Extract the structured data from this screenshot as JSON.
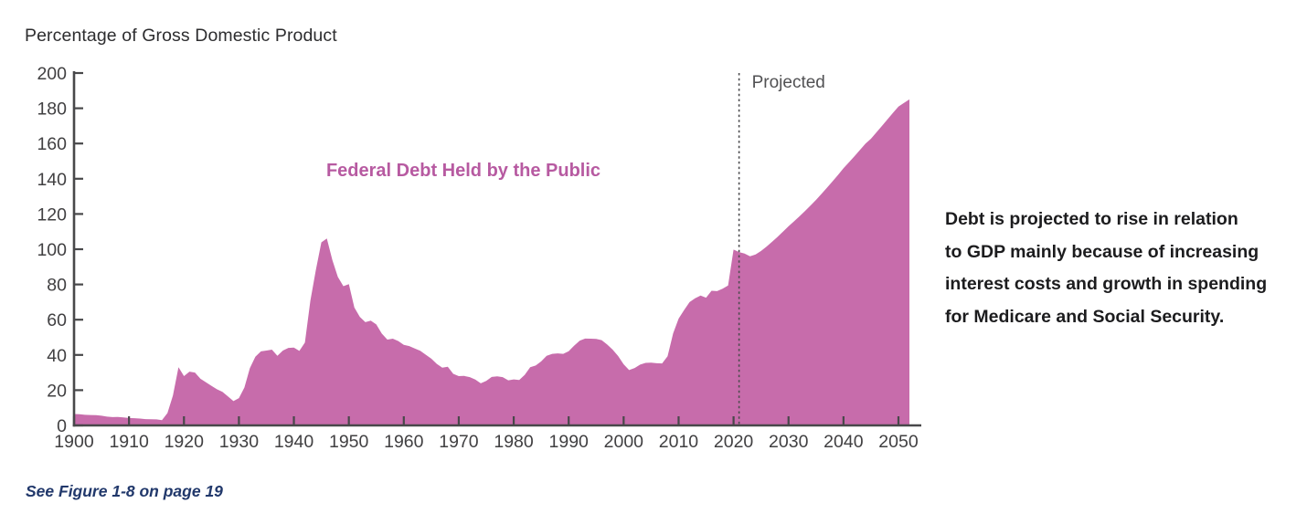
{
  "chart_data": {
    "type": "area",
    "title": "Federal Debt Held by the Public",
    "ylabel": "Percentage of Gross Domestic Product",
    "xlabel": "",
    "xlim": [
      1900,
      2052
    ],
    "ylim": [
      0,
      200
    ],
    "y_tick_step": 20,
    "x_tick_start": 1900,
    "x_tick_end": 2050,
    "x_tick_step": 10,
    "grid": false,
    "legend_position": "none",
    "projection_divider_year": 2021,
    "projected_label": "Projected",
    "colors": {
      "area": "#c76cab",
      "series_label": "#b75aa1",
      "axis": "#48484a",
      "tick_label": "#414042",
      "projected_label": "#515153",
      "divider": "#4c4c4e"
    },
    "x": [
      1900,
      1901,
      1902,
      1903,
      1904,
      1905,
      1906,
      1907,
      1908,
      1909,
      1910,
      1911,
      1912,
      1913,
      1914,
      1915,
      1916,
      1917,
      1918,
      1919,
      1920,
      1921,
      1922,
      1923,
      1924,
      1925,
      1926,
      1927,
      1928,
      1929,
      1930,
      1931,
      1932,
      1933,
      1934,
      1935,
      1936,
      1937,
      1938,
      1939,
      1940,
      1941,
      1942,
      1943,
      1944,
      1945,
      1946,
      1947,
      1948,
      1949,
      1950,
      1951,
      1952,
      1953,
      1954,
      1955,
      1956,
      1957,
      1958,
      1959,
      1960,
      1961,
      1962,
      1963,
      1964,
      1965,
      1966,
      1967,
      1968,
      1969,
      1970,
      1971,
      1972,
      1973,
      1974,
      1975,
      1976,
      1977,
      1978,
      1979,
      1980,
      1981,
      1982,
      1983,
      1984,
      1985,
      1986,
      1987,
      1988,
      1989,
      1990,
      1991,
      1992,
      1993,
      1994,
      1995,
      1996,
      1997,
      1998,
      1999,
      2000,
      2001,
      2002,
      2003,
      2004,
      2005,
      2006,
      2007,
      2008,
      2009,
      2010,
      2011,
      2012,
      2013,
      2014,
      2015,
      2016,
      2017,
      2018,
      2019,
      2020,
      2021,
      2022,
      2023,
      2024,
      2025,
      2026,
      2027,
      2028,
      2029,
      2030,
      2031,
      2032,
      2033,
      2034,
      2035,
      2036,
      2037,
      2038,
      2039,
      2040,
      2041,
      2042,
      2043,
      2044,
      2045,
      2046,
      2047,
      2048,
      2049,
      2050,
      2051,
      2052
    ],
    "values": [
      6.5,
      6.3,
      6.0,
      5.9,
      5.8,
      5.5,
      5.0,
      4.7,
      4.8,
      4.5,
      4.2,
      4.1,
      3.9,
      3.6,
      3.5,
      3.4,
      3.0,
      7.0,
      17.0,
      33.0,
      28.0,
      30.5,
      30.0,
      26.5,
      24.5,
      22.5,
      20.5,
      19.0,
      16.5,
      13.8,
      15.5,
      21.5,
      32.5,
      39.0,
      42.0,
      42.5,
      43.0,
      39.5,
      42.5,
      44.0,
      44.2,
      42.3,
      47.0,
      70.9,
      88.3,
      103.9,
      106.1,
      93.9,
      84.3,
      79.0,
      80.2,
      66.9,
      61.6,
      58.6,
      59.5,
      57.3,
      52.1,
      48.7,
      49.2,
      47.9,
      45.7,
      45.0,
      43.7,
      42.4,
      40.1,
      37.9,
      34.9,
      32.8,
      33.3,
      29.3,
      28.0,
      28.1,
      27.4,
      26.0,
      23.9,
      25.3,
      27.5,
      27.8,
      27.4,
      25.6,
      26.1,
      25.8,
      28.7,
      33.0,
      34.0,
      36.3,
      39.5,
      40.6,
      40.9,
      40.6,
      42.1,
      45.3,
      48.1,
      49.3,
      49.2,
      49.1,
      48.4,
      45.9,
      43.0,
      39.4,
      34.7,
      31.4,
      32.6,
      34.5,
      35.5,
      35.6,
      35.3,
      35.2,
      39.2,
      52.3,
      60.6,
      65.5,
      70.0,
      72.2,
      73.7,
      72.5,
      76.4,
      76.2,
      77.6,
      79.4,
      99.8,
      98.4,
      97.5,
      96.0,
      97.0,
      99.0,
      101.5,
      104.2,
      107.0,
      110.0,
      113.0,
      115.8,
      118.7,
      121.7,
      124.8,
      128.0,
      131.4,
      134.9,
      138.5,
      142.2,
      146.0,
      149.4,
      152.8,
      156.3,
      159.9,
      162.7,
      166.3,
      170.0,
      173.7,
      177.4,
      181.0,
      183.0,
      185.0
    ]
  },
  "annotation": {
    "lines": [
      "Debt is projected to rise in relation",
      "to GDP mainly because of increasing",
      "interest costs and growth in spending",
      "for Medicare and Social Security."
    ]
  },
  "caption": {
    "text": "See Figure 1-8 on page 19"
  }
}
